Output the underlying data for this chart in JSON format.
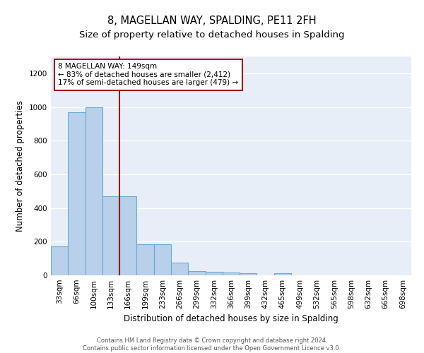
{
  "title": "8, MAGELLAN WAY, SPALDING, PE11 2FH",
  "subtitle": "Size of property relative to detached houses in Spalding",
  "xlabel": "Distribution of detached houses by size in Spalding",
  "ylabel": "Number of detached properties",
  "categories": [
    "33sqm",
    "66sqm",
    "100sqm",
    "133sqm",
    "166sqm",
    "199sqm",
    "233sqm",
    "266sqm",
    "299sqm",
    "332sqm",
    "366sqm",
    "399sqm",
    "432sqm",
    "465sqm",
    "499sqm",
    "532sqm",
    "565sqm",
    "598sqm",
    "632sqm",
    "665sqm",
    "698sqm"
  ],
  "values": [
    170,
    970,
    1000,
    470,
    470,
    185,
    185,
    75,
    25,
    20,
    15,
    12,
    0,
    12,
    0,
    0,
    0,
    0,
    0,
    0,
    0
  ],
  "bar_color": "#b8d0ea",
  "bar_edge_color": "#6aabd2",
  "vline_x": 3.5,
  "vline_color": "#9b1c1c",
  "annotation_text": "8 MAGELLAN WAY: 149sqm\n← 83% of detached houses are smaller (2,412)\n17% of semi-detached houses are larger (479) →",
  "annotation_box_color": "white",
  "annotation_box_edge_color": "#9b1c1c",
  "ylim": [
    0,
    1300
  ],
  "yticks": [
    0,
    200,
    400,
    600,
    800,
    1000,
    1200
  ],
  "background_color": "#e8eef8",
  "footer_text": "Contains HM Land Registry data © Crown copyright and database right 2024.\nContains public sector information licensed under the Open Government Licence v3.0.",
  "title_fontsize": 10.5,
  "subtitle_fontsize": 9.5,
  "axis_label_fontsize": 8.5,
  "tick_fontsize": 7.5,
  "annotation_fontsize": 7.5,
  "footer_fontsize": 6.0
}
